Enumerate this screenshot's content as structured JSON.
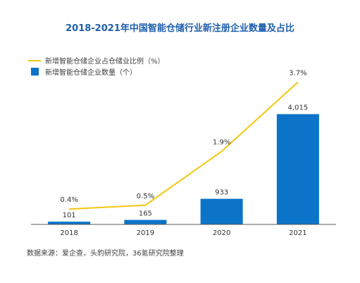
{
  "chart_data": {
    "type": "bar+line",
    "title": "2018-2021年中国智能仓储行业新注册企业数量及占比",
    "categories": [
      "2018",
      "2019",
      "2020",
      "2021"
    ],
    "series": [
      {
        "name": "新增智能仓储企业数量（个）",
        "type": "bar",
        "values": [
          101,
          165,
          933,
          4015
        ],
        "labels": [
          "101",
          "165",
          "933",
          "4,015"
        ]
      },
      {
        "name": "新增智能仓储企业占仓储业比例（%）",
        "type": "line",
        "values": [
          0.4,
          0.5,
          1.9,
          3.7
        ],
        "labels": [
          "0.4%",
          "0.5%",
          "1.9%",
          "3.7%"
        ]
      }
    ],
    "bar_ylim": [
      0,
      5600
    ],
    "line_ylim": [
      0,
      4.0
    ],
    "legend_position": "top-left",
    "grid": false
  },
  "source": "数据来源：爱企查，头豹研究院，36氪研究院整理",
  "colors": {
    "bar": "#0B74C8",
    "line": "#F2C811",
    "title": "#1F5FAD",
    "axis": "#595959"
  }
}
